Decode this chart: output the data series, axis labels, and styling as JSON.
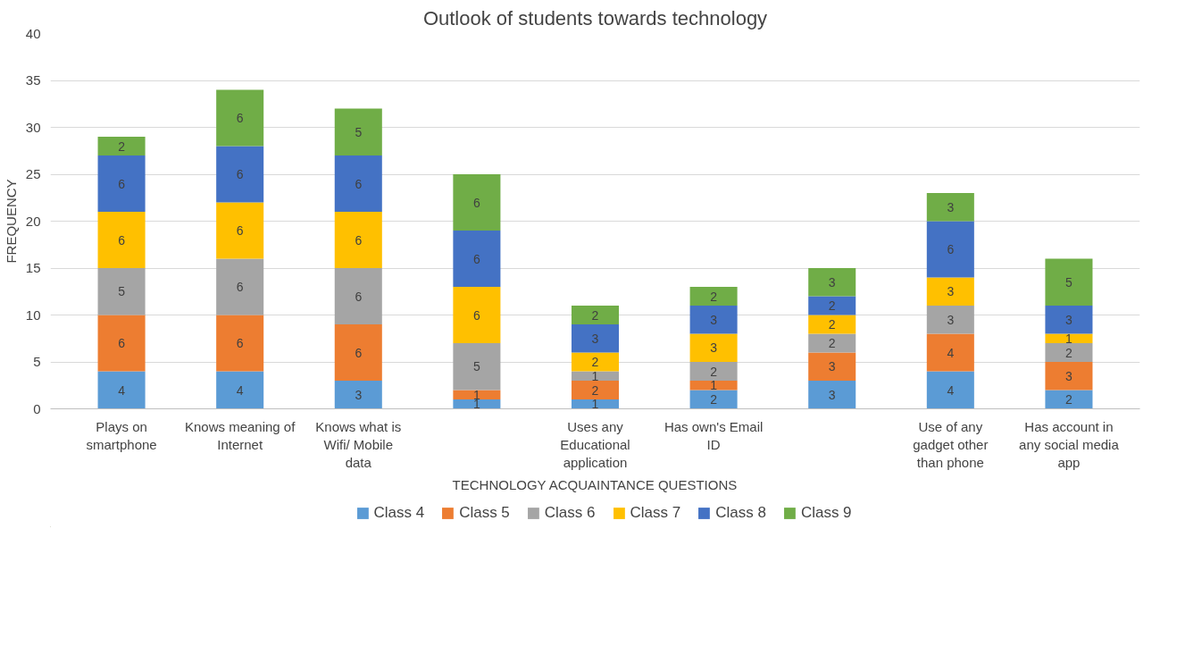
{
  "chart_data": {
    "type": "bar",
    "stacked": true,
    "title": "Outlook of students towards technology",
    "xlabel": "TECHNOLOGY ACQUAINTANCE QUESTIONS",
    "ylabel": "FREQUENCY",
    "categories": [
      "Plays on smartphone",
      "Knows meaning of Internet",
      "Knows what is Wifi/ Mobile data",
      null,
      "Uses any Educational application",
      "Has own's Email ID",
      null,
      "Use of any gadget other than phone",
      "Has account in any social media app"
    ],
    "series": [
      {
        "name": "Class 4",
        "color": "#5b9bd5",
        "values": [
          4,
          4,
          3,
          1,
          1,
          2,
          3,
          4,
          2
        ]
      },
      {
        "name": "Class 5",
        "color": "#ed7d31",
        "values": [
          6,
          6,
          6,
          1,
          2,
          1,
          3,
          4,
          3
        ]
      },
      {
        "name": "Class 6",
        "color": "#a5a5a5",
        "values": [
          5,
          6,
          6,
          5,
          1,
          2,
          2,
          3,
          2
        ]
      },
      {
        "name": "Class 7",
        "color": "#ffc000",
        "values": [
          6,
          6,
          6,
          6,
          2,
          3,
          2,
          3,
          1
        ]
      },
      {
        "name": "Class 8",
        "color": "#4472c4",
        "values": [
          6,
          6,
          6,
          6,
          3,
          3,
          2,
          6,
          3
        ]
      },
      {
        "name": "Class 9",
        "color": "#70ad47",
        "values": [
          2,
          6,
          5,
          6,
          2,
          2,
          3,
          3,
          5
        ]
      }
    ],
    "ylim": [
      0,
      40
    ],
    "yticks": [
      0,
      5,
      10,
      15,
      20,
      25,
      30,
      35,
      40
    ],
    "grid": "y",
    "legend": "bottom",
    "data_labels": true
  }
}
